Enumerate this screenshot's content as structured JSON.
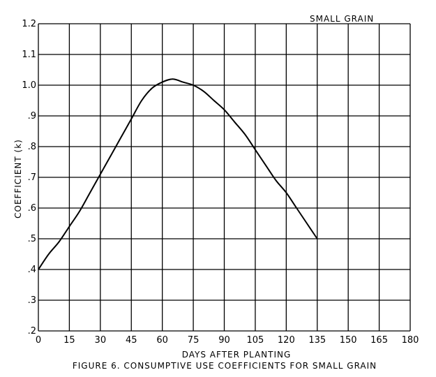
{
  "chart_data": {
    "type": "line",
    "title": "FIGURE 6. CONSUMPTIVE USE COEFFICIENTS FOR SMALL GRAIN",
    "xlabel": "DAYS AFTER PLANTING",
    "ylabel": "COEFFICIENT (k)",
    "xlim": [
      0,
      180
    ],
    "ylim": [
      0.2,
      1.2
    ],
    "grid": true,
    "x_ticks": [
      0,
      15,
      30,
      45,
      60,
      75,
      90,
      105,
      120,
      135,
      150,
      165,
      180
    ],
    "x_tick_labels": [
      "0",
      "15",
      "30",
      "45",
      "60",
      "75",
      "90",
      "105",
      "120",
      "135",
      "150",
      "165",
      "180"
    ],
    "y_ticks": [
      0.2,
      0.3,
      0.4,
      0.5,
      0.6,
      0.7,
      0.8,
      0.9,
      1.0,
      1.1,
      1.2
    ],
    "y_tick_labels": [
      ".2",
      ".3",
      ".4",
      ".5",
      ".6",
      ".7",
      ".8",
      ".9",
      "1.0",
      "1.1",
      "1.2"
    ],
    "series": [
      {
        "name": "SMALL GRAIN",
        "x": [
          0,
          5,
          10,
          15,
          20,
          25,
          30,
          35,
          40,
          45,
          50,
          55,
          60,
          65,
          70,
          75,
          80,
          85,
          90,
          95,
          100,
          105,
          110,
          115,
          120,
          125,
          130,
          135
        ],
        "y": [
          0.4,
          0.45,
          0.49,
          0.54,
          0.59,
          0.65,
          0.71,
          0.77,
          0.83,
          0.89,
          0.95,
          0.99,
          1.01,
          1.02,
          1.01,
          1.0,
          0.98,
          0.95,
          0.92,
          0.88,
          0.84,
          0.79,
          0.74,
          0.69,
          0.65,
          0.6,
          0.55,
          0.5
        ]
      }
    ]
  }
}
